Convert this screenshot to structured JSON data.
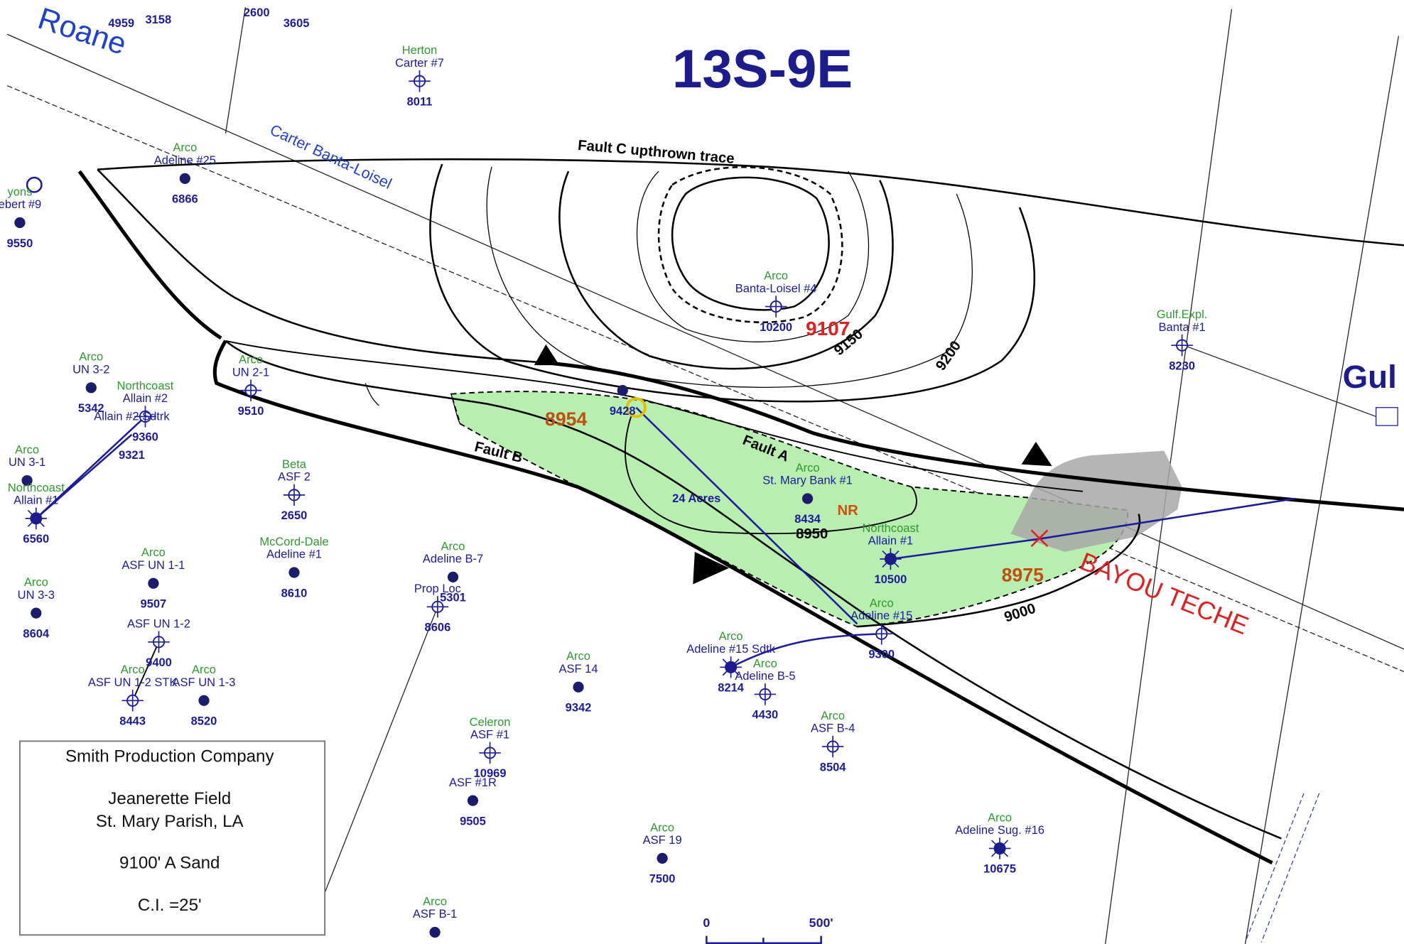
{
  "title": "13S-9E",
  "map_labels": {
    "roane": "Roane",
    "road": "Carter Banta-Loisel",
    "fault_c": "Fault C upthrown trace",
    "fault_a": "Fault A",
    "fault_b": "Fault B",
    "bayou": "BAYOU TECHE",
    "gulf": "Gul",
    "acres": "24 Acres",
    "nr": "NR"
  },
  "contours": [
    9150,
    9200,
    9000,
    8950
  ],
  "spot_values": [
    9107,
    8954,
    8975
  ],
  "partial_labels": [
    4959,
    3158,
    2600,
    3605
  ],
  "wells": [
    {
      "operator": "Herton",
      "name": "Carter #7",
      "depth": 8011
    },
    {
      "operator": "Arco",
      "name": "Adeline #25",
      "depth": 6866
    },
    {
      "operator": "yons",
      "name": "ebert #9",
      "depth": 9550
    },
    {
      "operator": "Arco",
      "name": "Banta-Loisel #4",
      "depth": 10200
    },
    {
      "operator": "Gulf.Expl.",
      "name": "Banta #1",
      "depth": 8230
    },
    {
      "operator": "Arco",
      "name": "UN 3-2",
      "depth": 5342
    },
    {
      "operator": "Northcoast",
      "name": "Allain #2",
      "depth": 9360
    },
    {
      "name": "Allain #2 Sdtrk",
      "depth": 9321
    },
    {
      "operator": "Arco",
      "name": "UN 2-1",
      "depth": 9510
    },
    {
      "operator": "Arco",
      "name": "UN 3-1"
    },
    {
      "operator": "Northcoast",
      "name": "Allain #1",
      "depth": 6560
    },
    {
      "operator": "Beta",
      "name": "ASF 2",
      "depth": 2650
    },
    {
      "operator": "McCord-Dale",
      "name": "Adeline #1",
      "depth": 8610
    },
    {
      "operator": "Arco",
      "name": "ASF UN 1-1",
      "depth": 9507
    },
    {
      "name": "ASF UN 1-2",
      "depth": 9400
    },
    {
      "operator": "Arco",
      "name": "UN 3-3",
      "depth": 8604
    },
    {
      "operator": "Arco",
      "name": "ASF UN 1-2 STK",
      "depth": 8443
    },
    {
      "operator": "Arco",
      "name": "ASF UN 1-3",
      "depth": 8520
    },
    {
      "operator": "Arco",
      "name": "Adeline B-7",
      "depth": 5301
    },
    {
      "name": "Prop Loc",
      "depth": 8606
    },
    {
      "depth": 9428
    },
    {
      "operator": "Arco",
      "name": "St. Mary Bank #1",
      "depth": 8434
    },
    {
      "operator": "Northcoast",
      "name": "Allain #1",
      "depth": 10500
    },
    {
      "operator": "Arco",
      "name": "Adeline #15",
      "depth": 9300
    },
    {
      "operator": "Arco",
      "name": "Adeline #15 Sdtk",
      "depth": 8214
    },
    {
      "operator": "Arco",
      "name": "Adeline B-5",
      "depth": 4430
    },
    {
      "operator": "Arco",
      "name": "ASF 14",
      "depth": 9342
    },
    {
      "operator": "Arco",
      "name": "ASF B-4",
      "depth": 8504
    },
    {
      "operator": "Celeron",
      "name": "ASF #1",
      "depth": 10969
    },
    {
      "name": "ASF #1R",
      "depth": 9505
    },
    {
      "operator": "Arco",
      "name": "ASF 19",
      "depth": 7500
    },
    {
      "operator": "Arco",
      "name": "Adeline Sug. #16",
      "depth": 10675
    },
    {
      "operator": "Arco",
      "name": "ASF B-1"
    }
  ],
  "scale": {
    "labels": [
      "0",
      "500'"
    ]
  },
  "legend": {
    "company": "Smith Production Company",
    "field": "Jeanerette Field",
    "parish": "St. Mary Parish, LA",
    "sand": "9100' A Sand",
    "interval": "C.I. =25'"
  }
}
